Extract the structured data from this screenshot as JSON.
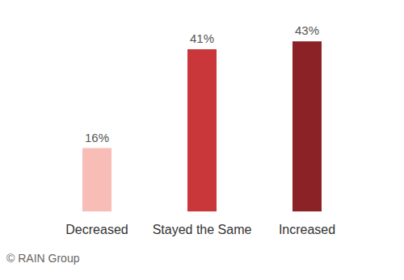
{
  "chart_data": {
    "type": "bar",
    "categories": [
      "Decreased",
      "Stayed the Same",
      "Increased"
    ],
    "values": [
      16,
      41,
      43
    ],
    "value_labels": [
      "16%",
      "41%",
      "43%"
    ],
    "colors": [
      "#f9bdb8",
      "#c9373a",
      "#8a2226"
    ],
    "ylim": [
      0,
      50
    ],
    "grid": false,
    "data_labels": true,
    "tick_labels": "x",
    "annotations": [
      "© RAIN Group"
    ]
  }
}
